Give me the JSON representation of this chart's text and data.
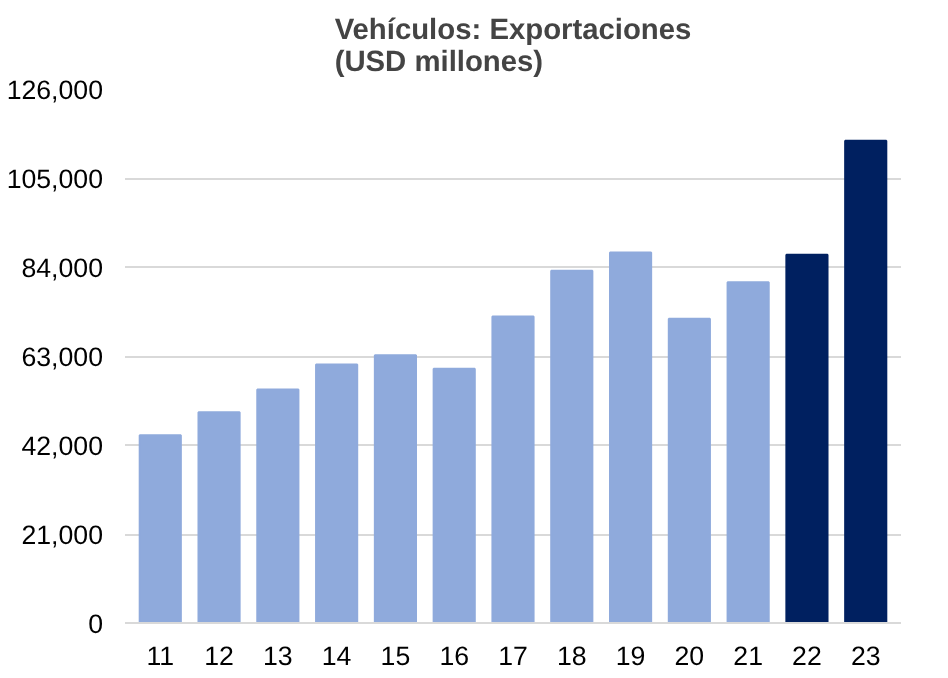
{
  "chart_data": {
    "type": "bar",
    "title": "Vehículos: Exportaciones\n(USD millones)",
    "categories": [
      "11",
      "12",
      "13",
      "14",
      "15",
      "16",
      "17",
      "18",
      "19",
      "20",
      "21",
      "22",
      "23"
    ],
    "values": [
      44300,
      49700,
      55100,
      61000,
      63200,
      60000,
      72300,
      83100,
      87400,
      71800,
      80400,
      86900,
      113800
    ],
    "colors": [
      "#8faadc",
      "#8faadc",
      "#8faadc",
      "#8faadc",
      "#8faadc",
      "#8faadc",
      "#8faadc",
      "#8faadc",
      "#8faadc",
      "#8faadc",
      "#8faadc",
      "#002060",
      "#002060"
    ],
    "ylim": [
      0,
      126000
    ],
    "yticks": [
      {
        "value": 0,
        "label": "0"
      },
      {
        "value": 21000,
        "label": "21,000"
      },
      {
        "value": 42000,
        "label": "42,000"
      },
      {
        "value": 63000,
        "label": "63,000"
      },
      {
        "value": 84000,
        "label": "84,000"
      },
      {
        "value": 105000,
        "label": "105,000"
      },
      {
        "value": 126000,
        "label": "126,000"
      }
    ],
    "grid": "y"
  }
}
